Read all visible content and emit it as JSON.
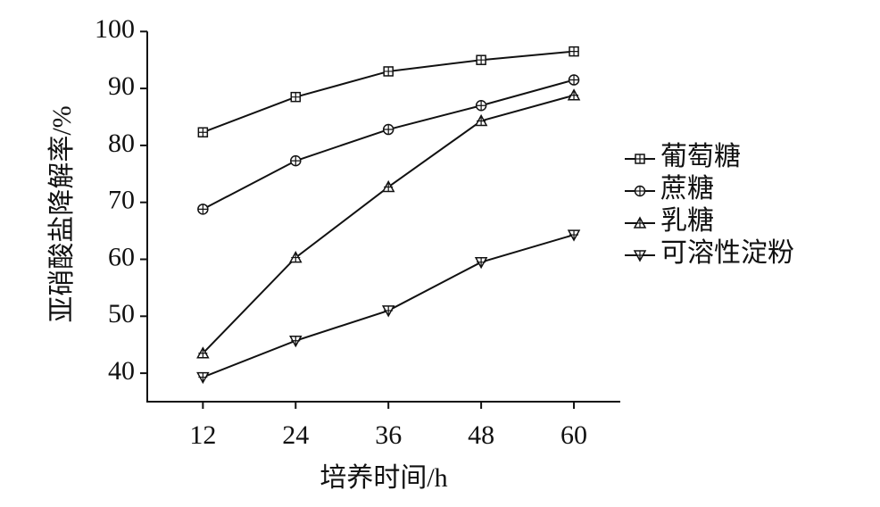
{
  "chart_data": {
    "type": "line",
    "x_label": "培养时间/h",
    "y_label": "亚硝酸盐降解率/%",
    "x": [
      12,
      24,
      36,
      48,
      60
    ],
    "xlim": [
      4.8,
      66
    ],
    "xticks": [
      12,
      24,
      36,
      48,
      60
    ],
    "ylim": [
      35,
      100
    ],
    "yticks": [
      40,
      50,
      60,
      70,
      80,
      90,
      100
    ],
    "series": [
      {
        "name": "葡萄糖",
        "color": "#111111",
        "marker": "square",
        "values": [
          82.3,
          88.5,
          93,
          95,
          96.5
        ]
      },
      {
        "name": "蔗糖",
        "color": "#111111",
        "marker": "circle",
        "values": [
          68.8,
          77.3,
          82.8,
          87,
          91.5
        ]
      },
      {
        "name": "乳糖",
        "color": "#111111",
        "marker": "triangle",
        "values": [
          43.5,
          60.3,
          72.7,
          84.3,
          88.8
        ]
      },
      {
        "name": "可溶性淀粉",
        "color": "#111111",
        "marker": "triangle-down",
        "values": [
          39.3,
          45.7,
          51,
          59.5,
          64.3
        ]
      }
    ],
    "legend": "right"
  }
}
